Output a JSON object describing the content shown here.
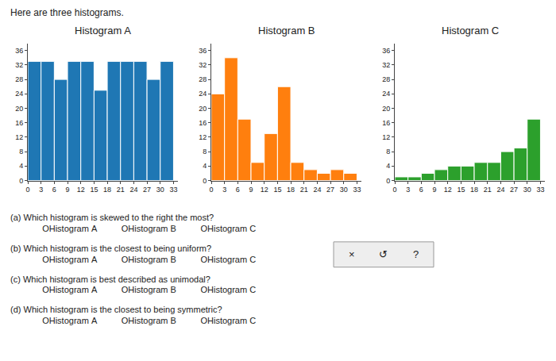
{
  "title": "Here are three histograms.",
  "annotations": [
    "(a) Which histogram is skewed to the right the most?",
    "   OHistogram A          OHistogram B          OHistogram C",
    "(b) Which histogram is the closest to being uniform?",
    "   OHistogram A          OHistogram B          OHistogram C",
    "(c) Which histogram is best described as unimodal?",
    "   OHistogram A          OHistogram B          OHistogram C",
    "(d) Which histogram is the closest to being symmetric?",
    "   OHistogram A          OHistogram B          OHistogram C",
    "×",
    "↺",
    "?"
  ],
  "chart_data": [
    {
      "type": "histogram",
      "title": "Histogram A",
      "bins": [
        0,
        3,
        6,
        9,
        12,
        15,
        18,
        21,
        24,
        27,
        30,
        33
      ],
      "values": [
        33,
        33,
        28,
        33,
        33,
        25,
        33,
        33,
        33,
        28,
        33
      ],
      "xlim": [
        0,
        34
      ],
      "xticks": [
        0,
        3,
        6,
        9,
        12,
        15,
        18,
        21,
        24,
        27,
        30,
        33
      ],
      "ylim": [
        0,
        38
      ],
      "yticks": [
        0,
        4,
        8,
        12,
        16,
        20,
        24,
        28,
        32,
        36
      ],
      "grid": false
    },
    {
      "type": "histogram",
      "title": "Histogram B",
      "bins": [
        0,
        3,
        6,
        9,
        12,
        15,
        18,
        21,
        24,
        27,
        30,
        33
      ],
      "values": [
        24,
        34,
        17,
        5,
        13,
        26,
        5,
        3,
        2,
        3,
        2
      ],
      "xlim": [
        0,
        34
      ],
      "xticks": [
        0,
        3,
        6,
        9,
        12,
        15,
        18,
        21,
        24,
        27,
        30,
        33
      ],
      "ylim": [
        0,
        38
      ],
      "yticks": [
        0,
        4,
        8,
        12,
        16,
        20,
        24,
        28,
        32,
        36
      ],
      "grid": false
    },
    {
      "type": "histogram",
      "title": "Histogram C",
      "bins": [
        0,
        3,
        6,
        9,
        12,
        15,
        18,
        21,
        24,
        27,
        30,
        33
      ],
      "values": [
        1,
        1,
        2,
        3,
        4,
        4,
        5,
        5,
        8,
        9,
        17
      ],
      "xlim": [
        0,
        34
      ],
      "xticks": [
        0,
        3,
        6,
        9,
        12,
        15,
        18,
        21,
        24,
        27,
        30,
        33
      ],
      "ylim": [
        0,
        38
      ],
      "yticks": [
        0,
        4,
        8,
        12,
        16,
        20,
        24,
        28,
        32,
        36
      ],
      "grid": false
    }
  ]
}
